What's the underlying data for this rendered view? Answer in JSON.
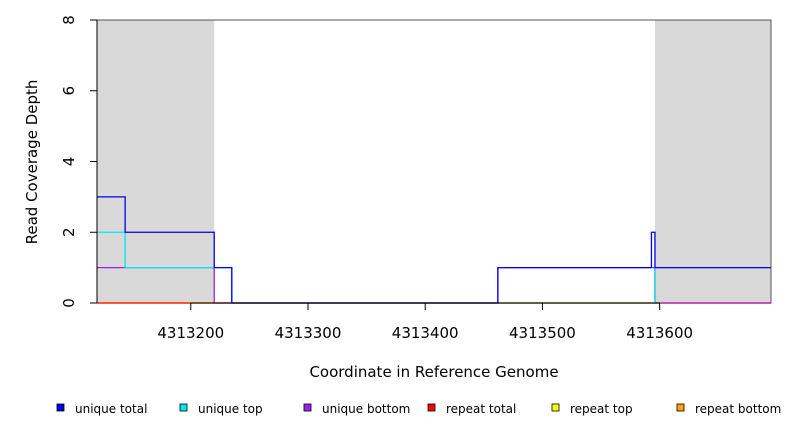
{
  "chart_data": {
    "type": "line",
    "line_style": "step",
    "title": "",
    "xlabel": "Coordinate in Reference Genome",
    "ylabel": "Read Coverage Depth",
    "xlim": [
      4313120,
      4313695
    ],
    "ylim": [
      0,
      8
    ],
    "x_ticks": [
      4313200,
      4313300,
      4313400,
      4313500,
      4313600
    ],
    "x_tick_labels": [
      "4313200",
      "4313300",
      "4313400",
      "4313500",
      "4313600"
    ],
    "y_ticks": [
      0,
      2,
      4,
      6,
      8
    ],
    "y_tick_labels": [
      "0",
      "2",
      "4",
      "6",
      "8"
    ],
    "shaded_regions": [
      {
        "x0": 4313120,
        "x1": 4313220,
        "color": "#d9d9d9"
      },
      {
        "x0": 4313596,
        "x1": 4313695,
        "color": "#d9d9d9"
      }
    ],
    "grid": false,
    "legend_position": "bottom",
    "series": [
      {
        "name": "repeat bottom",
        "color": "#ffa500",
        "points": [
          [
            4313120,
            0
          ],
          [
            4313695,
            0
          ]
        ]
      },
      {
        "name": "repeat top",
        "color": "#ffff00",
        "points": [
          [
            4313120,
            0
          ],
          [
            4313695,
            0
          ]
        ]
      },
      {
        "name": "repeat total",
        "color": "#ff0000",
        "points": [
          [
            4313120,
            0
          ],
          [
            4313695,
            0
          ]
        ]
      },
      {
        "name": "unique bottom",
        "color": "#a020f0",
        "points": [
          [
            4313120,
            1
          ],
          [
            4313220,
            1
          ],
          [
            4313220,
            0
          ],
          [
            4313462,
            0
          ],
          [
            4313462,
            1
          ],
          [
            4313596,
            1
          ],
          [
            4313596,
            0
          ],
          [
            4313695,
            0
          ]
        ]
      },
      {
        "name": "unique top",
        "color": "#00e5ee",
        "points": [
          [
            4313120,
            2
          ],
          [
            4313144,
            2
          ],
          [
            4313144,
            1
          ],
          [
            4313220,
            1
          ],
          [
            4313220,
            1
          ],
          [
            4313235,
            1
          ],
          [
            4313235,
            0
          ],
          [
            4313596,
            0
          ],
          [
            4313596,
            1
          ],
          [
            4313695,
            1
          ]
        ]
      },
      {
        "name": "unique total",
        "color": "#0000ee",
        "points": [
          [
            4313120,
            3
          ],
          [
            4313144,
            3
          ],
          [
            4313144,
            2
          ],
          [
            4313220,
            2
          ],
          [
            4313220,
            1
          ],
          [
            4313235,
            1
          ],
          [
            4313235,
            0
          ],
          [
            4313462,
            0
          ],
          [
            4313462,
            1
          ],
          [
            4313593,
            1
          ],
          [
            4313593,
            2
          ],
          [
            4313596,
            2
          ],
          [
            4313596,
            1
          ],
          [
            4313695,
            1
          ]
        ]
      }
    ],
    "legend": [
      {
        "label": "unique total",
        "color": "#0000ee"
      },
      {
        "label": "unique top",
        "color": "#00e5ee"
      },
      {
        "label": "unique bottom",
        "color": "#a020f0"
      },
      {
        "label": "repeat total",
        "color": "#ff0000"
      },
      {
        "label": "repeat top",
        "color": "#ffff00"
      },
      {
        "label": "repeat bottom",
        "color": "#ffa500"
      }
    ]
  }
}
